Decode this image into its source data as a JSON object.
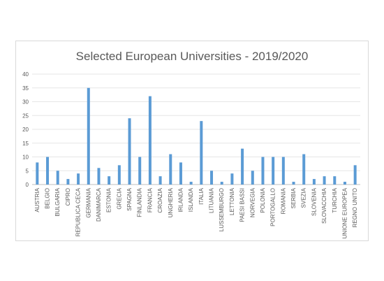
{
  "chart_data": {
    "type": "bar",
    "title": "Selected European Universities - 2019/2020",
    "xlabel": "",
    "ylabel": "",
    "ylim": [
      0,
      40
    ],
    "yticks": [
      0,
      5,
      10,
      15,
      20,
      25,
      30,
      35,
      40
    ],
    "grid": true,
    "legend": "none",
    "bar_color": "#5b9bd5",
    "categories": [
      "AUSTRIA",
      "BELGIO",
      "BULGARIA",
      "CIPRO",
      "REPUBLICA CECA",
      "GERMANIA",
      "DANIMARCA",
      "ESTONIA",
      "GRECIA",
      "SPAGNA",
      "FINLANDIA",
      "FRANCIA",
      "CROAZIA",
      "UNGHERIA",
      "IRLANDA",
      "ISLANDA",
      "ITALIA",
      "LITUANIA",
      "LUSSEMBURGO",
      "LETTONIA",
      "PAESI BASSI",
      "NORVEGIA",
      "POLONIA",
      "PORTOGALLO",
      "ROMANIA",
      "SERBIA",
      "SVEZIA",
      "SLOVENIA",
      "SLOVACCHIA",
      "TURCHIA",
      "UNIONE EUROPEA",
      "REGNO UNITO"
    ],
    "values": [
      8,
      10,
      5,
      2,
      4,
      35,
      6,
      3,
      7,
      24,
      10,
      32,
      3,
      11,
      8,
      1,
      23,
      5,
      1,
      4,
      13,
      5,
      10,
      10,
      10,
      1,
      11,
      2,
      3,
      3,
      1,
      7
    ]
  }
}
